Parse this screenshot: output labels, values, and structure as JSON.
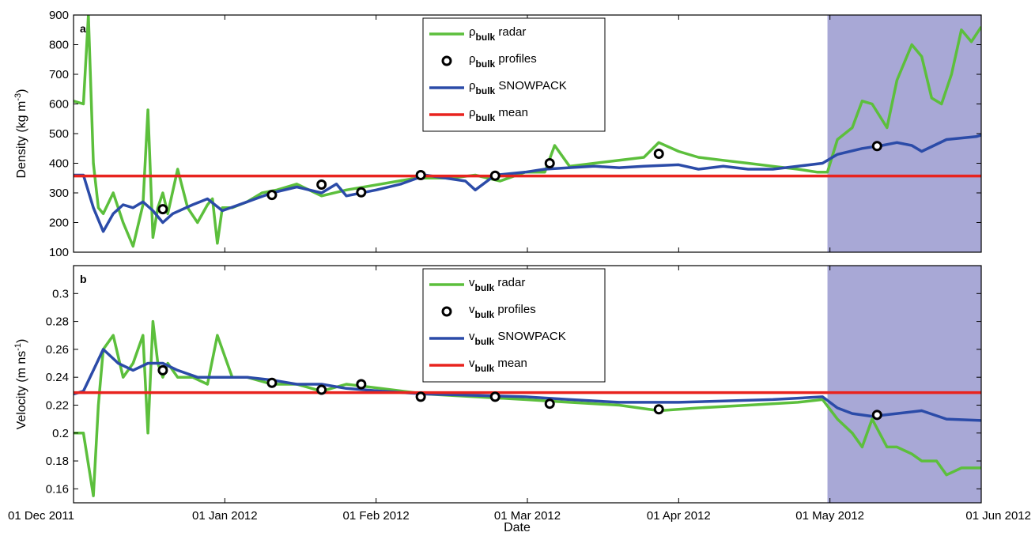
{
  "colors": {
    "radar": "#5cbf3c",
    "profiles_fill": "#000000",
    "snowpack": "#2b4ba8",
    "mean": "#e8231e",
    "shade": "#a8a8d6"
  },
  "xlabel": "Date",
  "x_ticks": [
    "01 Dec 2011",
    "01 Jan 2012",
    "01 Feb 2012",
    "01 Mar 2012",
    "01 Apr 2012",
    "01 May 2012",
    "01 Jun 2012"
  ],
  "chart_data": [
    {
      "type": "line",
      "panel": "a",
      "ylabel": "Density (kg m",
      "ylabel_sup": "-3",
      "ylabel_tail": ")",
      "xlim": [
        "2011-12-01",
        "2012-06-01"
      ],
      "ylim": [
        100,
        900
      ],
      "y_ticks": [
        "100",
        "200",
        "300",
        "400",
        "500",
        "600",
        "700",
        "800",
        "900"
      ],
      "y_tick_values": [
        100,
        200,
        300,
        400,
        500,
        600,
        700,
        800,
        900
      ],
      "shaded_region": [
        "2012-05-01",
        "2012-06-01"
      ],
      "legend": [
        {
          "sym": "ρ",
          "sub": "bulk",
          "text": " radar"
        },
        {
          "sym": "ρ",
          "sub": "bulk",
          "text": " profiles"
        },
        {
          "sym": "ρ",
          "sub": "bulk",
          "text": " SNOWPACK"
        },
        {
          "sym": "ρ",
          "sub": "bulk",
          "text": " mean"
        }
      ],
      "series": {
        "radar": {
          "x": [
            "2011-12-01",
            "2011-12-03",
            "2011-12-04",
            "2011-12-05",
            "2011-12-06",
            "2011-12-07",
            "2011-12-09",
            "2011-12-11",
            "2011-12-13",
            "2011-12-15",
            "2011-12-16",
            "2011-12-17",
            "2011-12-18",
            "2011-12-19",
            "2011-12-20",
            "2011-12-22",
            "2011-12-24",
            "2011-12-26",
            "2011-12-28",
            "2011-12-29",
            "2011-12-30",
            "2011-12-31",
            "2012-01-02",
            "2012-01-05",
            "2012-01-08",
            "2012-01-11",
            "2012-01-15",
            "2012-01-20",
            "2012-01-25",
            "2012-02-01",
            "2012-02-08",
            "2012-02-15",
            "2012-02-20",
            "2012-02-25",
            "2012-03-01",
            "2012-03-05",
            "2012-03-07",
            "2012-03-10",
            "2012-03-15",
            "2012-03-20",
            "2012-03-25",
            "2012-03-28",
            "2012-04-01",
            "2012-04-05",
            "2012-04-10",
            "2012-04-15",
            "2012-04-20",
            "2012-04-25",
            "2012-04-29",
            "2012-05-01",
            "2012-05-03",
            "2012-05-06",
            "2012-05-08",
            "2012-05-10",
            "2012-05-13",
            "2012-05-15",
            "2012-05-18",
            "2012-05-20",
            "2012-05-22",
            "2012-05-24",
            "2012-05-26",
            "2012-05-28",
            "2012-05-30",
            "2012-06-01"
          ],
          "y": [
            610,
            600,
            900,
            400,
            250,
            230,
            300,
            200,
            120,
            260,
            580,
            150,
            250,
            300,
            230,
            380,
            250,
            200,
            260,
            280,
            130,
            250,
            250,
            270,
            300,
            310,
            330,
            290,
            310,
            330,
            350,
            350,
            360,
            340,
            370,
            370,
            460,
            390,
            400,
            410,
            420,
            470,
            440,
            420,
            410,
            400,
            390,
            380,
            370,
            370,
            480,
            520,
            610,
            600,
            520,
            680,
            800,
            760,
            620,
            600,
            700,
            850,
            810,
            860
          ]
        },
        "profiles": {
          "x": [
            "2011-12-19",
            "2012-01-10",
            "2012-01-20",
            "2012-01-28",
            "2012-02-09",
            "2012-02-24",
            "2012-03-06",
            "2012-03-28",
            "2012-05-11"
          ],
          "y": [
            245,
            293,
            328,
            302,
            360,
            358,
            400,
            432,
            458
          ]
        },
        "snowpack": {
          "x": [
            "2011-12-01",
            "2011-12-03",
            "2011-12-05",
            "2011-12-07",
            "2011-12-09",
            "2011-12-11",
            "2011-12-13",
            "2011-12-15",
            "2011-12-17",
            "2011-12-19",
            "2011-12-21",
            "2011-12-25",
            "2011-12-28",
            "2011-12-31",
            "2012-01-05",
            "2012-01-10",
            "2012-01-15",
            "2012-01-20",
            "2012-01-23",
            "2012-01-25",
            "2012-01-31",
            "2012-02-05",
            "2012-02-10",
            "2012-02-18",
            "2012-02-20",
            "2012-02-24",
            "2012-03-01",
            "2012-03-05",
            "2012-03-10",
            "2012-03-15",
            "2012-03-20",
            "2012-03-25",
            "2012-04-01",
            "2012-04-05",
            "2012-04-10",
            "2012-04-15",
            "2012-04-20",
            "2012-04-25",
            "2012-04-30",
            "2012-05-03",
            "2012-05-08",
            "2012-05-12",
            "2012-05-15",
            "2012-05-18",
            "2012-05-20",
            "2012-05-25",
            "2012-05-31",
            "2012-06-01"
          ],
          "y": [
            360,
            360,
            250,
            170,
            230,
            260,
            250,
            270,
            240,
            200,
            230,
            260,
            280,
            240,
            270,
            300,
            320,
            300,
            330,
            290,
            310,
            330,
            360,
            340,
            310,
            360,
            370,
            380,
            385,
            390,
            385,
            390,
            395,
            380,
            390,
            380,
            380,
            390,
            400,
            430,
            450,
            460,
            470,
            460,
            440,
            480,
            490,
            495
          ]
        },
        "mean": {
          "value": 357
        }
      }
    },
    {
      "type": "line",
      "panel": "b",
      "ylabel": "Velocity (m ns",
      "ylabel_sup": "-1",
      "ylabel_tail": ")",
      "xlim": [
        "2011-12-01",
        "2012-06-01"
      ],
      "ylim": [
        0.15,
        0.32
      ],
      "y_ticks": [
        "0.16",
        "0.18",
        "0.2",
        "0.22",
        "0.24",
        "0.26",
        "0.28",
        "0.3"
      ],
      "y_tick_values": [
        0.16,
        0.18,
        0.2,
        0.22,
        0.24,
        0.26,
        0.28,
        0.3
      ],
      "shaded_region": [
        "2012-05-01",
        "2012-06-01"
      ],
      "legend": [
        {
          "sym": "v",
          "sub": "bulk",
          "text": " radar"
        },
        {
          "sym": "v",
          "sub": "bulk",
          "text": " profiles"
        },
        {
          "sym": "v",
          "sub": "bulk",
          "text": " SNOWPACK"
        },
        {
          "sym": "v",
          "sub": "bulk",
          "text": " mean"
        }
      ],
      "series": {
        "radar": {
          "x": [
            "2011-12-01",
            "2011-12-03",
            "2011-12-05",
            "2011-12-06",
            "2011-12-07",
            "2011-12-09",
            "2011-12-11",
            "2011-12-13",
            "2011-12-15",
            "2011-12-16",
            "2011-12-17",
            "2011-12-18",
            "2011-12-19",
            "2011-12-20",
            "2011-12-22",
            "2011-12-25",
            "2011-12-28",
            "2011-12-30",
            "2012-01-02",
            "2012-01-05",
            "2012-01-10",
            "2012-01-15",
            "2012-01-20",
            "2012-01-25",
            "2012-02-01",
            "2012-02-10",
            "2012-02-20",
            "2012-03-01",
            "2012-03-10",
            "2012-03-20",
            "2012-03-28",
            "2012-04-05",
            "2012-04-15",
            "2012-04-25",
            "2012-04-30",
            "2012-05-03",
            "2012-05-06",
            "2012-05-08",
            "2012-05-10",
            "2012-05-13",
            "2012-05-15",
            "2012-05-18",
            "2012-05-20",
            "2012-05-23",
            "2012-05-25",
            "2012-05-28",
            "2012-06-01"
          ],
          "y": [
            0.2,
            0.2,
            0.155,
            0.22,
            0.26,
            0.27,
            0.24,
            0.25,
            0.27,
            0.2,
            0.28,
            0.25,
            0.24,
            0.25,
            0.24,
            0.24,
            0.235,
            0.27,
            0.24,
            0.24,
            0.235,
            0.235,
            0.23,
            0.235,
            0.232,
            0.228,
            0.226,
            0.224,
            0.222,
            0.22,
            0.216,
            0.218,
            0.22,
            0.222,
            0.224,
            0.21,
            0.2,
            0.19,
            0.21,
            0.19,
            0.19,
            0.185,
            0.18,
            0.18,
            0.17,
            0.175,
            0.175
          ]
        },
        "profiles": {
          "x": [
            "2011-12-19",
            "2012-01-10",
            "2012-01-20",
            "2012-01-28",
            "2012-02-09",
            "2012-02-24",
            "2012-03-06",
            "2012-03-28",
            "2012-05-11"
          ],
          "y": [
            0.245,
            0.236,
            0.231,
            0.235,
            0.226,
            0.226,
            0.221,
            0.217,
            0.213
          ]
        },
        "snowpack": {
          "x": [
            "2011-12-01",
            "2011-12-03",
            "2011-12-05",
            "2011-12-07",
            "2011-12-10",
            "2011-12-13",
            "2011-12-16",
            "2011-12-19",
            "2011-12-22",
            "2011-12-26",
            "2011-12-31",
            "2012-01-05",
            "2012-01-10",
            "2012-01-15",
            "2012-01-20",
            "2012-01-25",
            "2012-02-01",
            "2012-02-10",
            "2012-02-20",
            "2012-03-01",
            "2012-03-10",
            "2012-03-20",
            "2012-04-01",
            "2012-04-10",
            "2012-04-20",
            "2012-04-30",
            "2012-05-03",
            "2012-05-06",
            "2012-05-10",
            "2012-05-15",
            "2012-05-20",
            "2012-05-25",
            "2012-06-01"
          ],
          "y": [
            0.228,
            0.23,
            0.245,
            0.26,
            0.25,
            0.245,
            0.25,
            0.25,
            0.245,
            0.24,
            0.24,
            0.24,
            0.238,
            0.235,
            0.235,
            0.232,
            0.23,
            0.228,
            0.227,
            0.226,
            0.224,
            0.222,
            0.222,
            0.223,
            0.224,
            0.226,
            0.218,
            0.214,
            0.212,
            0.214,
            0.216,
            0.21,
            0.209
          ]
        },
        "mean": {
          "value": 0.229
        }
      }
    }
  ]
}
